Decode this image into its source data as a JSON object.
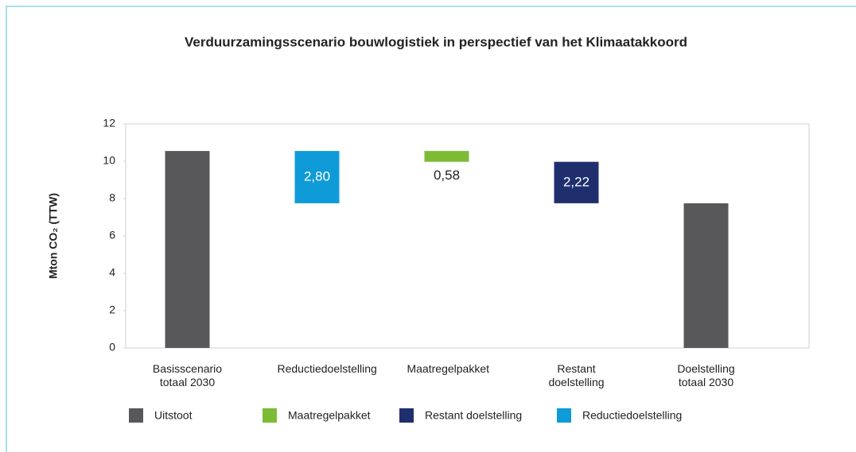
{
  "chart_data": {
    "type": "waterfall",
    "title": "Verduurzamingsscenario bouwlogistiek in perspectief van het Klimaatakkoord",
    "ylabel": "Mton CO₂ (TTW)",
    "categories": [
      "Basisscenario totaal 2030",
      "Reductiedoelstelling",
      "Maatregelpakket",
      "Restant doelstelling",
      "Doelstelling totaal 2030"
    ],
    "series": [
      {
        "name": "Uitstoot",
        "color": "#58585a",
        "values": [
          10.55,
          null,
          null,
          null,
          7.75
        ]
      },
      {
        "name": "Maatregelpakket",
        "color": "#7dbb35",
        "values": [
          null,
          null,
          0.58,
          null,
          null
        ],
        "value_labels": [
          null,
          null,
          "0,58",
          null,
          null
        ]
      },
      {
        "name": "Restant doelstelling",
        "color": "#1f2f6e",
        "values": [
          null,
          null,
          null,
          2.22,
          null
        ],
        "value_labels": [
          null,
          null,
          null,
          "2,22",
          null
        ]
      },
      {
        "name": "Reductiedoelstelling",
        "color": "#0f9bd7",
        "values": [
          null,
          2.8,
          null,
          null,
          null
        ],
        "value_labels": [
          null,
          "2,80",
          null,
          null,
          null
        ]
      }
    ],
    "ylim": [
      0,
      12
    ],
    "yticks": [
      0,
      2,
      4,
      6,
      8,
      10,
      12
    ]
  }
}
